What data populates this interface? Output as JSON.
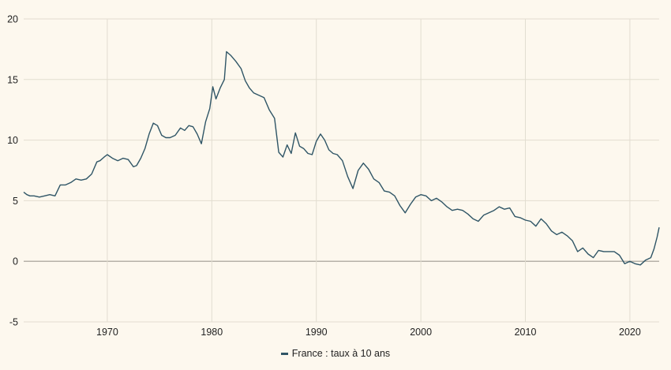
{
  "chart_data": {
    "type": "line",
    "title": "",
    "xlabel": "",
    "ylabel": "",
    "xlim": [
      1962.0,
      2022.8
    ],
    "ylim": [
      -5,
      20
    ],
    "grid": true,
    "legend_position": "bottom",
    "y_ticks": [
      20,
      15,
      10,
      5,
      0,
      -5
    ],
    "y_tick_labels": [
      "20",
      "15",
      "10",
      "5",
      "0",
      "-5"
    ],
    "x_ticks": [
      1970,
      1980,
      1990,
      2000,
      2010,
      2020
    ],
    "x_tick_labels": [
      "1970",
      "1980",
      "1990",
      "2000",
      "2010",
      "2020"
    ],
    "series": [
      {
        "name": "France : taux à 10 ans",
        "color": "#2f5566",
        "x": [
          1962.0,
          1962.3,
          1962.6,
          1963.0,
          1963.5,
          1964.0,
          1964.5,
          1965.0,
          1965.5,
          1966.0,
          1966.5,
          1967.0,
          1967.5,
          1968.0,
          1968.5,
          1969.0,
          1969.3,
          1969.7,
          1970.0,
          1970.5,
          1971.0,
          1971.5,
          1972.0,
          1972.5,
          1972.8,
          1973.2,
          1973.6,
          1974.0,
          1974.4,
          1974.8,
          1975.2,
          1975.6,
          1976.0,
          1976.5,
          1977.0,
          1977.4,
          1977.8,
          1978.2,
          1978.6,
          1979.0,
          1979.4,
          1979.8,
          1980.1,
          1980.4,
          1980.8,
          1981.2,
          1981.4,
          1981.8,
          1982.3,
          1982.8,
          1983.2,
          1983.6,
          1984.0,
          1984.5,
          1985.0,
          1985.5,
          1986.0,
          1986.4,
          1986.8,
          1987.2,
          1987.6,
          1988.0,
          1988.4,
          1988.8,
          1989.2,
          1989.6,
          1990.0,
          1990.4,
          1990.8,
          1991.2,
          1991.6,
          1992.0,
          1992.5,
          1993.0,
          1993.5,
          1994.0,
          1994.5,
          1995.0,
          1995.5,
          1996.0,
          1996.5,
          1997.0,
          1997.5,
          1998.0,
          1998.5,
          1999.0,
          1999.5,
          2000.0,
          2000.5,
          2001.0,
          2001.5,
          2002.0,
          2002.5,
          2003.0,
          2003.5,
          2004.0,
          2004.5,
          2005.0,
          2005.5,
          2006.0,
          2006.5,
          2007.0,
          2007.5,
          2008.0,
          2008.5,
          2009.0,
          2009.5,
          2010.0,
          2010.5,
          2011.0,
          2011.5,
          2012.0,
          2012.5,
          2013.0,
          2013.5,
          2014.0,
          2014.5,
          2015.0,
          2015.5,
          2016.0,
          2016.5,
          2017.0,
          2017.5,
          2018.0,
          2018.5,
          2019.0,
          2019.5,
          2020.0,
          2020.5,
          2021.0,
          2021.5,
          2022.0,
          2022.3,
          2022.6,
          2022.8
        ],
        "values": [
          5.7,
          5.5,
          5.4,
          5.4,
          5.3,
          5.4,
          5.5,
          5.4,
          6.3,
          6.3,
          6.5,
          6.8,
          6.7,
          6.8,
          7.2,
          8.2,
          8.3,
          8.6,
          8.8,
          8.5,
          8.3,
          8.5,
          8.4,
          7.8,
          7.9,
          8.5,
          9.3,
          10.5,
          11.4,
          11.2,
          10.4,
          10.2,
          10.2,
          10.4,
          11.0,
          10.8,
          11.2,
          11.1,
          10.5,
          9.7,
          11.5,
          12.6,
          14.4,
          13.4,
          14.3,
          15.0,
          17.3,
          17.0,
          16.5,
          15.9,
          14.9,
          14.3,
          13.9,
          13.7,
          13.5,
          12.5,
          11.8,
          9.0,
          8.6,
          9.6,
          8.9,
          10.6,
          9.5,
          9.3,
          8.9,
          8.8,
          9.9,
          10.5,
          10.0,
          9.2,
          8.9,
          8.8,
          8.3,
          7.0,
          6.0,
          7.5,
          8.1,
          7.6,
          6.8,
          6.5,
          5.8,
          5.7,
          5.4,
          4.6,
          4.0,
          4.7,
          5.3,
          5.5,
          5.4,
          5.0,
          5.2,
          4.9,
          4.5,
          4.2,
          4.3,
          4.2,
          3.9,
          3.5,
          3.3,
          3.8,
          4.0,
          4.2,
          4.5,
          4.3,
          4.4,
          3.7,
          3.6,
          3.4,
          3.3,
          2.9,
          3.5,
          3.1,
          2.5,
          2.2,
          2.4,
          2.1,
          1.7,
          0.8,
          1.1,
          0.6,
          0.3,
          0.9,
          0.8,
          0.8,
          0.8,
          0.5,
          -0.2,
          0.0,
          -0.2,
          -0.3,
          0.1,
          0.3,
          1.0,
          2.0,
          2.8
        ]
      }
    ]
  },
  "legend": {
    "label": "France : taux à 10 ans"
  }
}
